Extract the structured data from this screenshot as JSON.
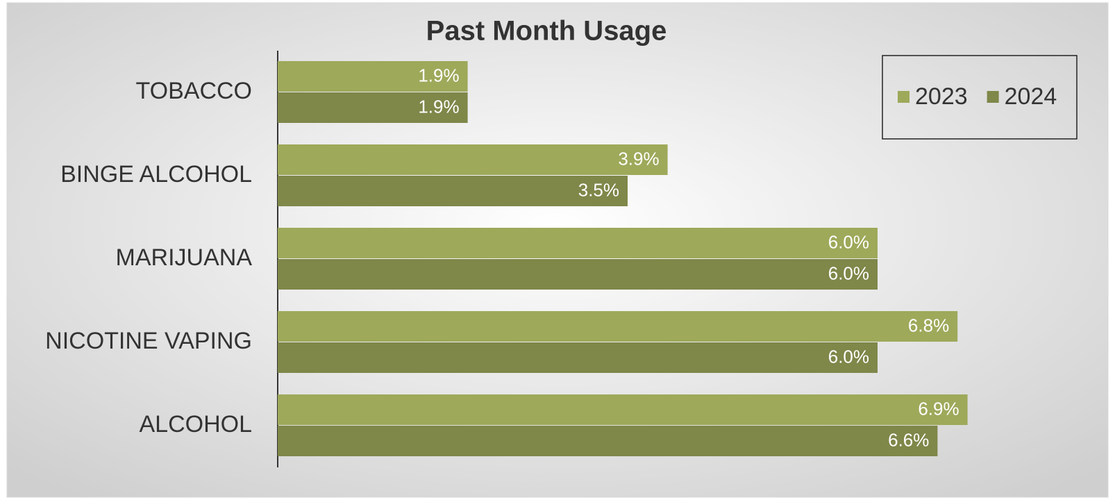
{
  "chart_data": {
    "type": "bar",
    "orientation": "horizontal",
    "title": "Past Month Usage",
    "categories": [
      "TOBACCO",
      "BINGE ALCOHOL",
      "MARIJUANA",
      "NICOTINE VAPING",
      "ALCOHOL"
    ],
    "series": [
      {
        "name": "2023",
        "color": "#9ea95a",
        "values": [
          1.9,
          3.9,
          6.0,
          6.8,
          6.9
        ],
        "value_labels": [
          "1.9%",
          "3.9%",
          "6.0%",
          "6.8%",
          "6.9%"
        ]
      },
      {
        "name": "2024",
        "color": "#7f8749",
        "values": [
          1.9,
          3.5,
          6.0,
          6.0,
          6.6
        ],
        "value_labels": [
          "1.9%",
          "3.5%",
          "6.0%",
          "6.0%",
          "6.6%"
        ]
      }
    ],
    "xlim": [
      0,
      8
    ],
    "legend": "top-right"
  }
}
